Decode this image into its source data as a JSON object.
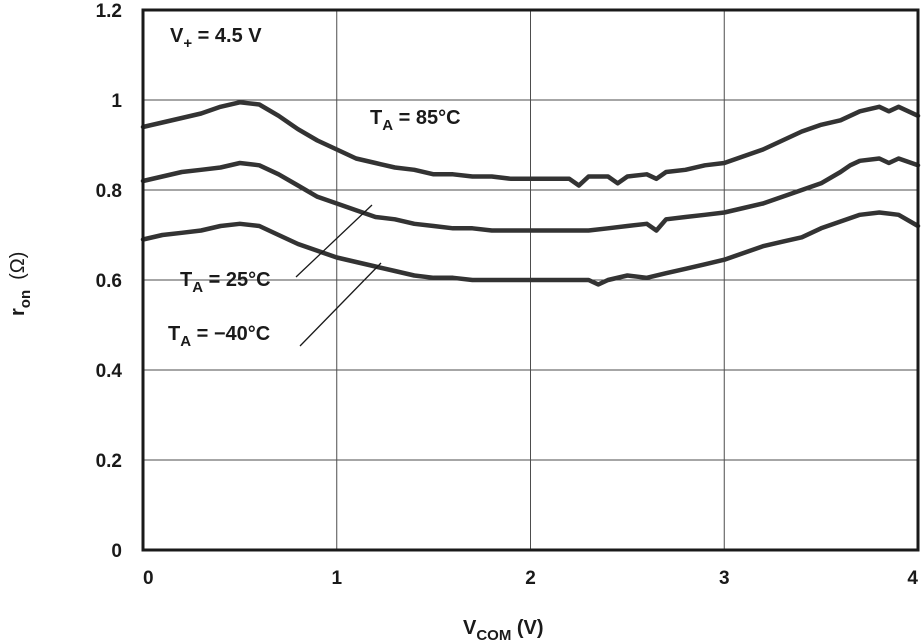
{
  "chart_data": {
    "type": "line",
    "xlabel": {
      "main": "V",
      "sub": "COM",
      "unit": " (V)"
    },
    "ylabel": {
      "main": "r",
      "sub": "on",
      "unit": "(Ω)"
    },
    "xlim": [
      0,
      4
    ],
    "ylim": [
      0,
      1.2
    ],
    "x_ticks": [
      "0",
      "1",
      "2",
      "3",
      "4"
    ],
    "y_ticks": [
      "0",
      "0.2",
      "0.4",
      "0.6",
      "0.8",
      "1",
      "1.2"
    ],
    "grid": true,
    "condition": {
      "main": "V",
      "sub": "+",
      "rest": " = 4.5 V"
    },
    "series": [
      {
        "name": "TA = 85°C",
        "label": {
          "main": "T",
          "sub": "A",
          "rest": " = 85°C"
        },
        "x": [
          0,
          0.1,
          0.2,
          0.3,
          0.4,
          0.5,
          0.6,
          0.7,
          0.8,
          0.9,
          1.0,
          1.1,
          1.2,
          1.3,
          1.4,
          1.5,
          1.6,
          1.7,
          1.8,
          1.9,
          2.0,
          2.1,
          2.2,
          2.25,
          2.3,
          2.4,
          2.45,
          2.5,
          2.6,
          2.65,
          2.7,
          2.8,
          2.9,
          3.0,
          3.1,
          3.2,
          3.3,
          3.4,
          3.5,
          3.6,
          3.7,
          3.8,
          3.85,
          3.9,
          4.0
        ],
        "values": [
          0.94,
          0.95,
          0.96,
          0.97,
          0.985,
          0.995,
          0.99,
          0.965,
          0.935,
          0.91,
          0.89,
          0.87,
          0.86,
          0.85,
          0.845,
          0.835,
          0.835,
          0.83,
          0.83,
          0.825,
          0.825,
          0.825,
          0.825,
          0.81,
          0.83,
          0.83,
          0.815,
          0.83,
          0.835,
          0.825,
          0.84,
          0.845,
          0.855,
          0.86,
          0.875,
          0.89,
          0.91,
          0.93,
          0.945,
          0.955,
          0.975,
          0.985,
          0.975,
          0.985,
          0.965
        ]
      },
      {
        "name": "TA = 25°C",
        "label": {
          "main": "T",
          "sub": "A",
          "rest": " = 25°C"
        },
        "x": [
          0,
          0.1,
          0.2,
          0.3,
          0.4,
          0.5,
          0.6,
          0.7,
          0.8,
          0.9,
          1.0,
          1.1,
          1.2,
          1.3,
          1.4,
          1.5,
          1.6,
          1.7,
          1.8,
          1.9,
          2.0,
          2.1,
          2.2,
          2.3,
          2.4,
          2.5,
          2.6,
          2.65,
          2.7,
          2.8,
          2.9,
          3.0,
          3.1,
          3.2,
          3.3,
          3.4,
          3.5,
          3.6,
          3.65,
          3.7,
          3.8,
          3.85,
          3.9,
          4.0
        ],
        "values": [
          0.82,
          0.83,
          0.84,
          0.845,
          0.85,
          0.86,
          0.855,
          0.835,
          0.81,
          0.785,
          0.77,
          0.755,
          0.74,
          0.735,
          0.725,
          0.72,
          0.715,
          0.715,
          0.71,
          0.71,
          0.71,
          0.71,
          0.71,
          0.71,
          0.715,
          0.72,
          0.725,
          0.71,
          0.735,
          0.74,
          0.745,
          0.75,
          0.76,
          0.77,
          0.785,
          0.8,
          0.815,
          0.84,
          0.855,
          0.865,
          0.87,
          0.86,
          0.87,
          0.855
        ]
      },
      {
        "name": "TA = −40°C",
        "label": {
          "main": "T",
          "sub": "A",
          "rest": " = −40°C"
        },
        "x": [
          0,
          0.1,
          0.2,
          0.3,
          0.4,
          0.5,
          0.6,
          0.7,
          0.8,
          0.9,
          1.0,
          1.1,
          1.2,
          1.3,
          1.4,
          1.5,
          1.6,
          1.7,
          1.8,
          1.9,
          2.0,
          2.1,
          2.2,
          2.3,
          2.35,
          2.4,
          2.5,
          2.6,
          2.7,
          2.8,
          2.9,
          3.0,
          3.1,
          3.2,
          3.3,
          3.4,
          3.5,
          3.6,
          3.7,
          3.8,
          3.9,
          4.0
        ],
        "values": [
          0.69,
          0.7,
          0.705,
          0.71,
          0.72,
          0.725,
          0.72,
          0.7,
          0.68,
          0.665,
          0.65,
          0.64,
          0.63,
          0.62,
          0.61,
          0.605,
          0.605,
          0.6,
          0.6,
          0.6,
          0.6,
          0.6,
          0.6,
          0.6,
          0.59,
          0.6,
          0.61,
          0.605,
          0.615,
          0.625,
          0.635,
          0.645,
          0.66,
          0.675,
          0.685,
          0.695,
          0.715,
          0.73,
          0.745,
          0.75,
          0.745,
          0.72
        ]
      }
    ]
  }
}
